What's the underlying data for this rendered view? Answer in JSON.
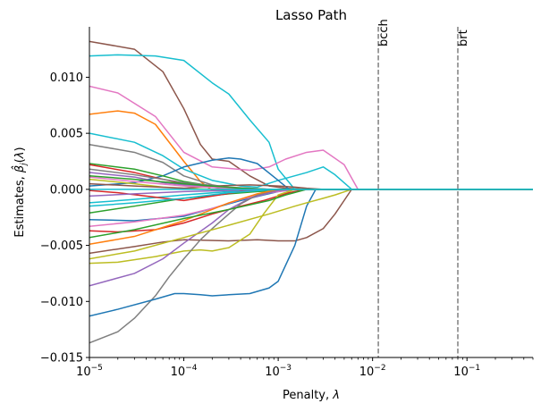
{
  "chart_data": {
    "type": "line",
    "title": "Lasso Path",
    "xlabel": "Penalty, λ",
    "ylabel": "Estimates, β̂j(λ)",
    "xscale": "log",
    "xlim": [
      1e-05,
      0.5
    ],
    "ylim": [
      -0.015,
      0.0145
    ],
    "x_ticks": [
      {
        "value": 1e-05,
        "base": "10",
        "exp": "−5"
      },
      {
        "value": 0.0001,
        "base": "10",
        "exp": "−4"
      },
      {
        "value": 0.001,
        "base": "10",
        "exp": "−3"
      },
      {
        "value": 0.01,
        "base": "10",
        "exp": "−2"
      },
      {
        "value": 0.1,
        "base": "10",
        "exp": "−1"
      }
    ],
    "y_ticks": [
      {
        "value": -0.015,
        "label": "−0.015"
      },
      {
        "value": -0.01,
        "label": "−0.010"
      },
      {
        "value": -0.005,
        "label": "−0.005"
      },
      {
        "value": 0.0,
        "label": "0.000"
      },
      {
        "value": 0.005,
        "label": "0.005"
      },
      {
        "value": 0.01,
        "label": "0.010"
      }
    ],
    "grid": false,
    "vlines": [
      {
        "x": 0.0115,
        "label": "bcch",
        "color": "#808080"
      },
      {
        "x": 0.08,
        "label": "brt",
        "color": "#808080"
      }
    ],
    "series": [
      {
        "color": "#8c564b",
        "x": [
          1e-05,
          3e-05,
          6e-05,
          0.0001,
          0.00015,
          0.0002,
          0.0003,
          0.0005,
          0.0008,
          0.0012,
          0.002,
          0.005,
          0.5
        ],
        "y": [
          0.0132,
          0.0125,
          0.0105,
          0.0072,
          0.004,
          0.0027,
          0.0025,
          0.0012,
          0.0003,
          0.0001,
          0,
          0,
          0
        ]
      },
      {
        "color": "#17becf",
        "x": [
          1e-05,
          2e-05,
          5e-05,
          0.0001,
          0.0002,
          0.0003,
          0.0005,
          0.0008,
          0.001,
          0.0015,
          0.005,
          0.5
        ],
        "y": [
          0.0119,
          0.012,
          0.0119,
          0.0115,
          0.0095,
          0.0085,
          0.0062,
          0.0042,
          0.0018,
          0,
          0,
          0
        ]
      },
      {
        "color": "#e377c2",
        "x": [
          1e-05,
          2e-05,
          5e-05,
          0.0001,
          0.0002,
          0.0005,
          0.0008,
          0.0012,
          0.002,
          0.003,
          0.005,
          0.007,
          0.5
        ],
        "y": [
          0.0092,
          0.0086,
          0.0065,
          0.0033,
          0.002,
          0.0017,
          0.002,
          0.0027,
          0.0033,
          0.0035,
          0.0022,
          0,
          0
        ]
      },
      {
        "color": "#ff7f0e",
        "x": [
          1e-05,
          2e-05,
          3e-05,
          5e-05,
          0.0001,
          0.00015,
          0.0002,
          0.0003,
          0.0004,
          0.001,
          0.5
        ],
        "y": [
          0.0067,
          0.007,
          0.0068,
          0.0058,
          0.0025,
          0.0007,
          -0.0001,
          0,
          0,
          0,
          0
        ]
      },
      {
        "color": "#17becf",
        "x": [
          1e-05,
          3e-05,
          6e-05,
          0.0001,
          0.0002,
          0.0004,
          0.0006,
          0.001,
          0.002,
          0.003,
          0.004,
          0.006,
          0.5
        ],
        "y": [
          0.005,
          0.0042,
          0.003,
          0.0018,
          0.0008,
          0.0003,
          0.0002,
          0.0008,
          0.0015,
          0.002,
          0.0013,
          0,
          0
        ]
      },
      {
        "color": "#7f7f7f",
        "x": [
          1e-05,
          3e-05,
          6e-05,
          0.0001,
          0.0002,
          0.0004,
          0.001,
          0.5
        ],
        "y": [
          0.004,
          0.0033,
          0.0024,
          0.0012,
          0.0004,
          0,
          0,
          0
        ]
      },
      {
        "color": "#1f77b4",
        "x": [
          1e-05,
          3e-05,
          6e-05,
          0.0001,
          0.0002,
          0.0003,
          0.0004,
          0.0006,
          0.001,
          0.0013,
          0.002,
          0.5
        ],
        "y": [
          0.0003,
          0.0006,
          0.0012,
          0.002,
          0.0026,
          0.0028,
          0.0027,
          0.0023,
          0.0008,
          0,
          0,
          0
        ]
      },
      {
        "color": "#2ca02c",
        "x": [
          1e-05,
          3e-05,
          6e-05,
          0.0001,
          0.0002,
          0.0005,
          0.001,
          0.5
        ],
        "y": [
          0.0023,
          0.0018,
          0.0012,
          0.0007,
          0.0003,
          0,
          0,
          0
        ]
      },
      {
        "color": "#d62728",
        "x": [
          1e-05,
          3e-05,
          6e-05,
          0.0001,
          0.0002,
          0.0003,
          0.001,
          0.5
        ],
        "y": [
          0.0022,
          0.0015,
          0.0009,
          0.0005,
          0.0002,
          0,
          0,
          0
        ]
      },
      {
        "color": "#9467bd",
        "x": [
          1e-05,
          3e-05,
          6e-05,
          0.0001,
          0.0002,
          0.0005,
          0.0008,
          0.001,
          0.5
        ],
        "y": [
          0.0015,
          0.0011,
          0.0006,
          0.0004,
          0.0002,
          0.0001,
          0,
          0,
          0
        ]
      },
      {
        "color": "#bcbd22",
        "x": [
          1e-05,
          3e-05,
          6e-05,
          0.0001,
          0.0002,
          0.0005,
          0.001,
          0.5
        ],
        "y": [
          0.0009,
          0.0005,
          0.0002,
          0.0001,
          0,
          0,
          0,
          0
        ]
      },
      {
        "color": "#17becf",
        "x": [
          1e-05,
          3e-05,
          0.0001,
          0.0003,
          0.001,
          0.5
        ],
        "y": [
          -0.0012,
          -0.0009,
          -0.0005,
          -0.0002,
          0,
          0
        ]
      },
      {
        "color": "#2ca02c",
        "x": [
          1e-05,
          3e-05,
          0.0001,
          0.0003,
          0.0006,
          0.001,
          0.002,
          0.5
        ],
        "y": [
          -0.0021,
          -0.0015,
          -0.0008,
          -0.0004,
          -0.0002,
          -0.0001,
          0,
          0
        ]
      },
      {
        "color": "#1f77b4",
        "x": [
          1e-05,
          3e-05,
          0.0001,
          0.0002,
          0.0004,
          0.0007,
          0.001,
          0.0015,
          0.002,
          0.5
        ],
        "y": [
          -0.0027,
          -0.0028,
          -0.0024,
          -0.0017,
          -0.001,
          -0.0005,
          -0.0002,
          0,
          0,
          0
        ]
      },
      {
        "color": "#e377c2",
        "x": [
          1e-05,
          3e-05,
          0.0001,
          0.0002,
          0.0004,
          0.0007,
          0.001,
          0.0015,
          0.002,
          0.5
        ],
        "y": [
          -0.0033,
          -0.0029,
          -0.0023,
          -0.0017,
          -0.0009,
          -0.0004,
          -0.0002,
          0,
          0,
          0
        ]
      },
      {
        "color": "#d62728",
        "x": [
          1e-05,
          2e-05,
          5e-05,
          0.0001,
          0.0002,
          0.0004,
          0.0007,
          0.001,
          0.0013,
          0.002,
          0.5
        ],
        "y": [
          -0.0037,
          -0.0038,
          -0.0036,
          -0.003,
          -0.0022,
          -0.0015,
          -0.001,
          -0.0006,
          -0.0003,
          0,
          0
        ]
      },
      {
        "color": "#8c564b",
        "x": [
          1e-05,
          3e-05,
          6e-05,
          0.0001,
          0.0003,
          0.0006,
          0.001,
          0.0015,
          0.002,
          0.003,
          0.004,
          0.006,
          0.5
        ],
        "y": [
          -0.0057,
          -0.0051,
          -0.0047,
          -0.0045,
          -0.0046,
          -0.0045,
          -0.0046,
          -0.0046,
          -0.0043,
          -0.0035,
          -0.0022,
          0,
          0
        ]
      },
      {
        "color": "#bcbd22",
        "x": [
          1e-05,
          2e-05,
          5e-05,
          0.0001,
          0.00015,
          0.0002,
          0.0003,
          0.0005,
          0.0007,
          0.001,
          0.0015,
          0.002,
          0.5
        ],
        "y": [
          -0.0066,
          -0.0065,
          -0.006,
          -0.0055,
          -0.0054,
          -0.0055,
          -0.0052,
          -0.004,
          -0.0022,
          -0.0005,
          0,
          0,
          0
        ]
      },
      {
        "color": "#9467bd",
        "x": [
          1e-05,
          3e-05,
          6e-05,
          0.0001,
          0.0002,
          0.0003,
          0.0005,
          0.001,
          0.0015,
          0.5
        ],
        "y": [
          -0.0086,
          -0.0075,
          -0.0062,
          -0.0048,
          -0.003,
          -0.0018,
          -0.0008,
          -0.0001,
          0,
          0
        ]
      },
      {
        "color": "#7f7f7f",
        "x": [
          1e-05,
          2e-05,
          3e-05,
          5e-05,
          7e-05,
          0.0001,
          0.00015,
          0.0002,
          0.0003,
          0.0004,
          0.0006,
          0.001,
          0.0013,
          0.5
        ],
        "y": [
          -0.0137,
          -0.0127,
          -0.0115,
          -0.0095,
          -0.0078,
          -0.0062,
          -0.0045,
          -0.0035,
          -0.0022,
          -0.0013,
          -0.0005,
          0,
          0,
          0
        ]
      },
      {
        "color": "#1f77b4",
        "x": [
          1e-05,
          2e-05,
          5e-05,
          8e-05,
          0.0001,
          0.00015,
          0.0002,
          0.0003,
          0.0005,
          0.0008,
          0.001,
          0.0015,
          0.002,
          0.0025,
          0.003,
          0.5
        ],
        "y": [
          -0.0113,
          -0.0107,
          -0.0098,
          -0.0093,
          -0.0093,
          -0.0094,
          -0.0095,
          -0.0094,
          -0.0093,
          -0.0088,
          -0.0082,
          -0.005,
          -0.0015,
          0,
          0,
          0
        ]
      },
      {
        "color": "#ff7f0e",
        "x": [
          1e-05,
          3e-05,
          0.0001,
          0.0003,
          0.0006,
          0.001,
          0.5
        ],
        "y": [
          -0.0049,
          -0.0042,
          -0.0028,
          -0.0012,
          -0.0004,
          0,
          0
        ]
      },
      {
        "color": "#bcbd22",
        "x": [
          1e-05,
          3e-05,
          0.0001,
          0.0003,
          0.0008,
          0.0015,
          0.002,
          0.003,
          0.004,
          0.006,
          0.5
        ],
        "y": [
          -0.0062,
          -0.0055,
          -0.0043,
          -0.0032,
          -0.0022,
          -0.0015,
          -0.0012,
          -0.0008,
          -0.0005,
          0,
          0
        ]
      },
      {
        "color": "#2ca02c",
        "x": [
          1e-05,
          3e-05,
          0.0001,
          0.0003,
          0.0008,
          0.0012,
          0.002,
          0.5
        ],
        "y": [
          -0.0043,
          -0.0036,
          -0.0026,
          -0.0018,
          -0.001,
          -0.0005,
          0,
          0
        ]
      },
      {
        "color": "#d62728",
        "x": [
          1e-05,
          2e-05,
          5e-05,
          0.0001,
          0.0002,
          0.0004,
          0.001,
          0.5
        ],
        "y": [
          -0.0001,
          -0.0003,
          -0.0007,
          -0.001,
          -0.0006,
          -0.0002,
          0,
          0
        ]
      },
      {
        "color": "#8c564b",
        "x": [
          1e-05,
          3e-05,
          0.0001,
          0.0002,
          0.0005,
          0.001,
          0.0015,
          0.002,
          0.003,
          0.5
        ],
        "y": [
          0.0005,
          0.0003,
          0.0001,
          0.0003,
          0.0004,
          0.0003,
          0.0002,
          0.0001,
          0,
          0
        ]
      },
      {
        "color": "#e377c2",
        "x": [
          1e-05,
          3e-05,
          0.0001,
          0.0003,
          0.001,
          0.5
        ],
        "y": [
          0.0011,
          0.0007,
          0.0003,
          0.0001,
          0,
          0
        ]
      },
      {
        "color": "#9467bd",
        "x": [
          1e-05,
          3e-05,
          0.0001,
          0.0003,
          0.0008,
          0.5
        ],
        "y": [
          -0.0006,
          -0.0004,
          -0.0002,
          -0.0001,
          0,
          0
        ]
      },
      {
        "color": "#7f7f7f",
        "x": [
          1e-05,
          3e-05,
          0.0001,
          0.0003,
          0.0008,
          0.5
        ],
        "y": [
          0.0018,
          0.0013,
          0.0006,
          0.0002,
          0,
          0
        ]
      },
      {
        "color": "#17becf",
        "x": [
          1e-05,
          3e-05,
          0.0001,
          0.0003,
          0.001,
          0.5
        ],
        "y": [
          -0.0015,
          -0.0012,
          -0.0008,
          -0.0003,
          0,
          0
        ]
      },
      {
        "color": "#2ca02c",
        "x": [
          1e-05,
          3e-05,
          0.0001,
          0.0002,
          0.0004,
          0.0008,
          0.001,
          0.5
        ],
        "y": [
          0.0012,
          0.0009,
          0.0005,
          0.0003,
          0.0001,
          0,
          0,
          0
        ]
      },
      {
        "color": "#17becf",
        "x": [
          1e-05,
          0.5
        ],
        "y": [
          0,
          0
        ]
      }
    ]
  }
}
